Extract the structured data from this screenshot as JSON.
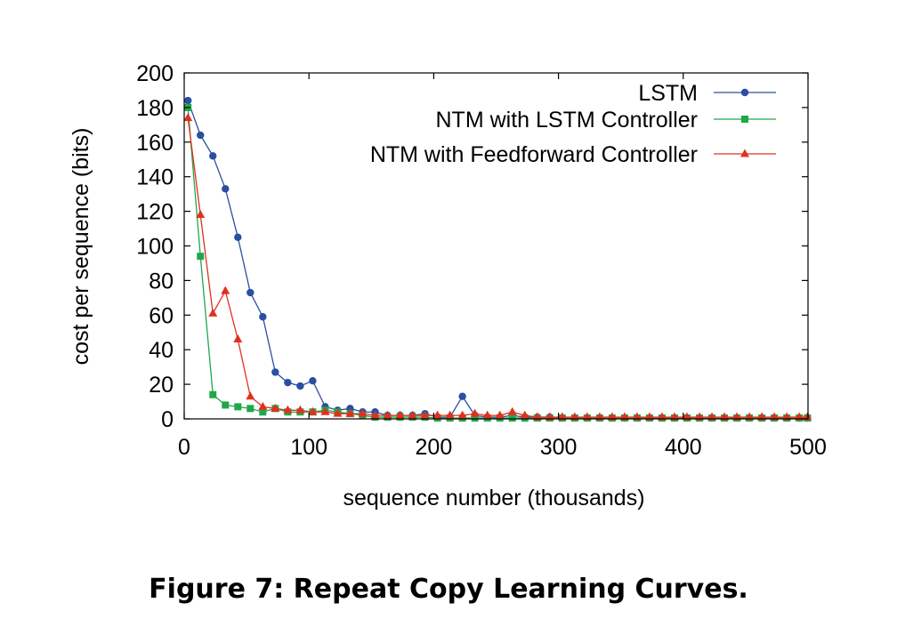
{
  "caption": "Figure 7: Repeat Copy Learning Curves.",
  "chart_data": {
    "type": "line",
    "title": "",
    "xlabel": "sequence number (thousands)",
    "ylabel": "cost per sequence (bits)",
    "xlim": [
      0,
      500
    ],
    "ylim": [
      0,
      200
    ],
    "xticks": [
      0,
      100,
      200,
      300,
      400,
      500
    ],
    "yticks": [
      0,
      20,
      40,
      60,
      80,
      100,
      120,
      140,
      160,
      180,
      200
    ],
    "grid": false,
    "legend_position": "top-right",
    "series": [
      {
        "name": "LSTM",
        "color": "#2a4fa0",
        "marker": "circle",
        "x": [
          3,
          13,
          23,
          33,
          43,
          53,
          63,
          73,
          83,
          93,
          103,
          113,
          123,
          133,
          143,
          153,
          163,
          173,
          183,
          193,
          203,
          213,
          223,
          233,
          243,
          253,
          263,
          273,
          283,
          293,
          303,
          313,
          323,
          333,
          343,
          353,
          363,
          373,
          383,
          393,
          403,
          413,
          423,
          433,
          443,
          453,
          463,
          473,
          483,
          493,
          503
        ],
        "y": [
          184,
          164,
          152,
          133,
          105,
          73,
          59,
          27,
          21,
          19,
          22,
          7,
          5,
          6,
          4,
          4,
          2,
          2,
          2,
          3,
          1,
          1,
          13,
          2,
          1,
          1,
          2,
          1,
          1,
          1,
          0.5,
          0.5,
          0.5,
          0.5,
          0.5,
          0.5,
          0.5,
          0.5,
          0.5,
          0.5,
          0.5,
          0.5,
          0.5,
          0.5,
          0.5,
          0.5,
          0.5,
          0.5,
          0.5,
          0.5,
          0.5
        ]
      },
      {
        "name": "NTM with LSTM Controller",
        "color": "#1fa84a",
        "marker": "square",
        "x": [
          3,
          13,
          23,
          33,
          43,
          53,
          63,
          73,
          83,
          93,
          103,
          113,
          123,
          133,
          143,
          153,
          163,
          173,
          183,
          193,
          203,
          213,
          223,
          233,
          243,
          253,
          263,
          273,
          283,
          293,
          303,
          313,
          323,
          333,
          343,
          353,
          363,
          373,
          383,
          393,
          403,
          413,
          423,
          433,
          443,
          453,
          463,
          473,
          483,
          493,
          503
        ],
        "y": [
          180,
          94,
          14,
          8,
          7,
          6,
          4,
          6,
          4,
          4,
          4,
          5,
          4,
          3,
          2,
          1,
          1,
          1,
          1,
          1,
          0.5,
          0.5,
          0.5,
          0.5,
          0.5,
          0.5,
          0.5,
          0.5,
          0.5,
          0.5,
          0.5,
          0.5,
          0.5,
          0.5,
          0.5,
          0.5,
          0.5,
          0.5,
          0.5,
          0.5,
          0.5,
          0.5,
          0.5,
          0.5,
          0.5,
          0.5,
          0.5,
          0.5,
          0.5,
          0.5,
          0.5
        ]
      },
      {
        "name": "NTM with Feedforward Controller",
        "color": "#e03020",
        "marker": "triangle",
        "x": [
          3,
          13,
          23,
          33,
          43,
          53,
          63,
          73,
          83,
          93,
          103,
          113,
          123,
          133,
          143,
          153,
          163,
          173,
          183,
          193,
          203,
          213,
          223,
          233,
          243,
          253,
          263,
          273,
          283,
          293,
          303,
          313,
          323,
          333,
          343,
          353,
          363,
          373,
          383,
          393,
          403,
          413,
          423,
          433,
          443,
          453,
          463,
          473,
          483,
          493,
          503
        ],
        "y": [
          174,
          118,
          61,
          74,
          46,
          13,
          7,
          6,
          5,
          5,
          4,
          4,
          3,
          3,
          3,
          2,
          2,
          2,
          2,
          2,
          2,
          2,
          2,
          3,
          2,
          2,
          4,
          2,
          1,
          1,
          1,
          1,
          1,
          1,
          1,
          1,
          1,
          1,
          1,
          1,
          1,
          1,
          1,
          1,
          1,
          1,
          1,
          1,
          1,
          1,
          1
        ]
      }
    ]
  }
}
